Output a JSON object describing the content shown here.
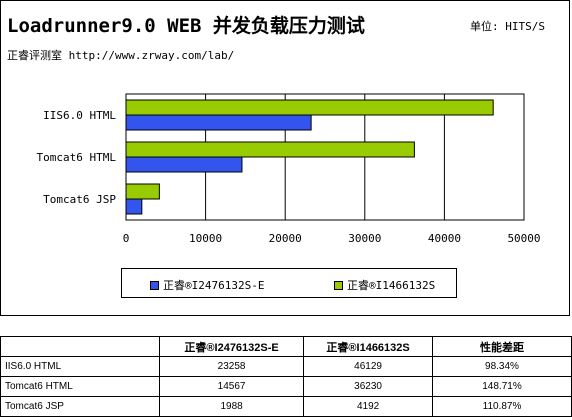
{
  "chart_data": {
    "type": "bar",
    "orientation": "horizontal",
    "title": "Loadrunner9.0 WEB 并发负载压力测试",
    "unit": "单位: HITS/S",
    "subtitle": "正睿评测室 http://www.zrway.com/lab/",
    "categories": [
      "IIS6.0 HTML",
      "Tomcat6 HTML",
      "Tomcat6 JSP"
    ],
    "series": [
      {
        "name": "正睿®I2476132S-E",
        "color": "#3355ee",
        "values": [
          23258,
          14567,
          1988
        ]
      },
      {
        "name": "正睿®I1466132S",
        "color": "#99cc00",
        "values": [
          46129,
          36230,
          4192
        ]
      }
    ],
    "xlim": [
      0,
      50000
    ],
    "xticks": [
      "0",
      "10000",
      "20000",
      "30000",
      "40000",
      "50000"
    ],
    "grid": true,
    "legend_position": "bottom"
  },
  "table": {
    "headers": [
      "",
      "正睿®I2476132S-E",
      "正睿®I1466132S",
      "性能差距"
    ],
    "rows": [
      [
        "IIS6.0 HTML",
        "23258",
        "46129",
        "98.34%"
      ],
      [
        "Tomcat6 HTML",
        "14567",
        "36230",
        "148.71%"
      ],
      [
        "Tomcat6 JSP",
        "1988",
        "4192",
        "110.87%"
      ]
    ]
  }
}
